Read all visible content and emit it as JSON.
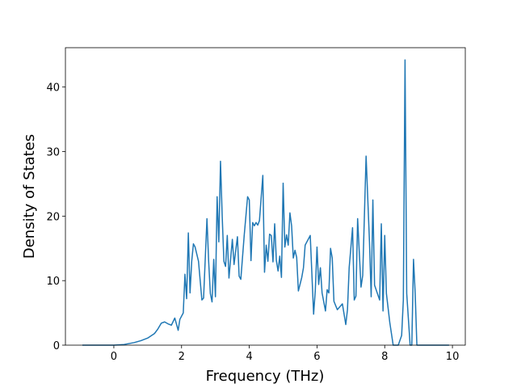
{
  "chart_data": {
    "type": "line",
    "xlabel": "Frequency (THz)",
    "ylabel": "Density of States",
    "x": [
      -0.93,
      0.0,
      0.3,
      0.6,
      0.8,
      1.0,
      1.2,
      1.3,
      1.4,
      1.5,
      1.6,
      1.7,
      1.8,
      1.9,
      1.95,
      2.05,
      2.1,
      2.15,
      2.2,
      2.25,
      2.3,
      2.35,
      2.4,
      2.5,
      2.6,
      2.65,
      2.75,
      2.8,
      2.85,
      2.9,
      2.95,
      3.0,
      3.05,
      3.1,
      3.15,
      3.2,
      3.25,
      3.3,
      3.35,
      3.4,
      3.5,
      3.55,
      3.65,
      3.7,
      3.75,
      3.85,
      3.95,
      4.0,
      4.05,
      4.1,
      4.15,
      4.2,
      4.25,
      4.3,
      4.4,
      4.45,
      4.5,
      4.55,
      4.6,
      4.65,
      4.7,
      4.75,
      4.8,
      4.85,
      4.9,
      4.95,
      5.0,
      5.05,
      5.1,
      5.15,
      5.2,
      5.25,
      5.3,
      5.35,
      5.4,
      5.45,
      5.55,
      5.6,
      5.65,
      5.8,
      5.9,
      5.95,
      6.0,
      6.05,
      6.1,
      6.15,
      6.25,
      6.3,
      6.35,
      6.4,
      6.45,
      6.5,
      6.6,
      6.75,
      6.85,
      6.9,
      6.95,
      7.05,
      7.1,
      7.15,
      7.2,
      7.3,
      7.35,
      7.45,
      7.55,
      7.6,
      7.65,
      7.7,
      7.85,
      7.9,
      7.95,
      8.0,
      8.05,
      8.15,
      8.25,
      8.4,
      8.5,
      8.55,
      8.6,
      8.65,
      8.75,
      8.8,
      8.85,
      8.9,
      8.95,
      9.9
    ],
    "series": [
      {
        "color": "#1f77b4",
        "values": [
          0,
          0,
          0.1,
          0.4,
          0.7,
          1.1,
          1.8,
          2.5,
          3.4,
          3.6,
          3.3,
          3.1,
          4.2,
          2.3,
          4.0,
          5.0,
          11.0,
          7.2,
          17.4,
          8.1,
          13.0,
          15.7,
          15.2,
          13.0,
          7.0,
          7.3,
          19.6,
          13.0,
          8.0,
          6.7,
          13.3,
          7.5,
          23.0,
          16.0,
          28.5,
          20.0,
          13.0,
          12.2,
          17.0,
          10.4,
          16.4,
          12.5,
          16.8,
          10.7,
          10.2,
          17.0,
          23.0,
          22.5,
          13.1,
          19.0,
          18.5,
          19.0,
          18.6,
          19.3,
          26.3,
          11.3,
          15.5,
          13.0,
          17.2,
          17.0,
          12.9,
          18.8,
          13.1,
          11.5,
          13.8,
          10.5,
          25.1,
          15.2,
          17.1,
          15.5,
          20.5,
          18.5,
          13.5,
          14.7,
          13.6,
          8.4,
          10.5,
          12.0,
          15.5,
          17.0,
          4.8,
          8.5,
          15.2,
          9.4,
          12.0,
          8.1,
          5.3,
          8.6,
          8.1,
          15.0,
          13.5,
          6.8,
          5.5,
          6.4,
          3.2,
          5.5,
          12.0,
          18.2,
          7.0,
          7.6,
          19.6,
          9.0,
          10.8,
          29.3,
          16.0,
          7.5,
          22.5,
          9.3,
          7.0,
          18.8,
          5.3,
          17.0,
          8.0,
          3.5,
          0,
          0,
          1.5,
          7.0,
          44.2,
          8.0,
          0,
          0,
          13.3,
          8.0,
          0,
          0
        ]
      }
    ],
    "xlim": [
      -1.43,
      10.38
    ],
    "ylim": [
      0,
      46.1
    ],
    "xticks": [
      0,
      2,
      4,
      6,
      8,
      10
    ],
    "yticks": [
      0,
      10,
      20,
      30,
      40
    ]
  }
}
